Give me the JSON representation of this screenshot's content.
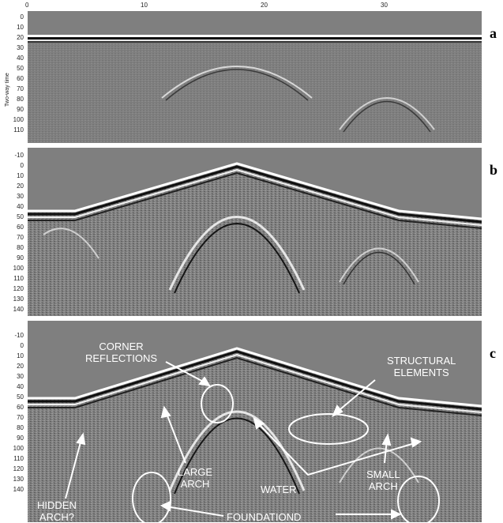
{
  "top_axis": {
    "ticks": [
      "0",
      "10",
      "20",
      "30"
    ]
  },
  "panels": [
    {
      "letter": "a",
      "y_axis_label": "Two-way time",
      "y_ticks": [
        "0",
        "10",
        "20",
        "30",
        "40",
        "50",
        "60",
        "70",
        "80",
        "90",
        "100",
        "110"
      ]
    },
    {
      "letter": "b",
      "y_ticks": [
        "-10",
        "0",
        "10",
        "20",
        "30",
        "40",
        "50",
        "60",
        "70",
        "80",
        "90",
        "100",
        "110",
        "120",
        "130",
        "140"
      ]
    },
    {
      "letter": "c",
      "y_ticks": [
        "-10",
        "0",
        "10",
        "20",
        "30",
        "40",
        "50",
        "60",
        "70",
        "80",
        "90",
        "100",
        "110",
        "120",
        "130",
        "140"
      ]
    }
  ],
  "annotations": {
    "corner_reflections": "CORNER\nREFLECTIONS",
    "structural_elements": "STRUCTURAL\nELEMENTS",
    "large_arch": "LARGE\nARCH",
    "water": "WATER",
    "small_arch": "SMALL\nARCH",
    "hidden_arch": "HIDDEN\nARCH?",
    "foundationd": "FOUNDATIOND"
  },
  "colors": {
    "background_grey": "#7f7f7f",
    "annotation": "#ffffff"
  }
}
